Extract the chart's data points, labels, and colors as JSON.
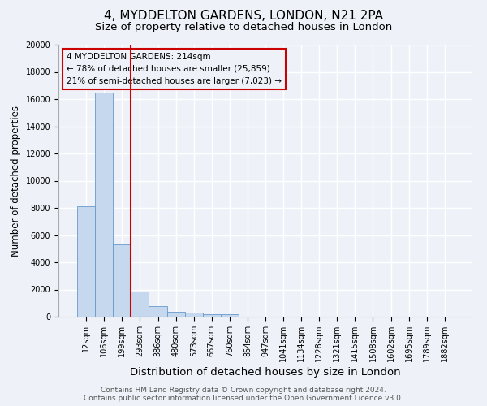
{
  "title": "4, MYDDELTON GARDENS, LONDON, N21 2PA",
  "subtitle": "Size of property relative to detached houses in London",
  "xlabel": "Distribution of detached houses by size in London",
  "ylabel": "Number of detached properties",
  "bar_color": "#c5d8ee",
  "bar_edge_color": "#6699cc",
  "categories": [
    "12sqm",
    "106sqm",
    "199sqm",
    "293sqm",
    "386sqm",
    "480sqm",
    "573sqm",
    "667sqm",
    "760sqm",
    "854sqm",
    "947sqm",
    "1041sqm",
    "1134sqm",
    "1228sqm",
    "1321sqm",
    "1415sqm",
    "1508sqm",
    "1602sqm",
    "1695sqm",
    "1789sqm",
    "1882sqm"
  ],
  "values": [
    8100,
    16500,
    5300,
    1850,
    750,
    330,
    270,
    200,
    170,
    0,
    0,
    0,
    0,
    0,
    0,
    0,
    0,
    0,
    0,
    0,
    0
  ],
  "vline_position": 2.5,
  "vline_color": "#cc0000",
  "annotation_text": "4 MYDDELTON GARDENS: 214sqm\n← 78% of detached houses are smaller (25,859)\n21% of semi-detached houses are larger (7,023) →",
  "annotation_box_color": "#cc0000",
  "ylim": [
    0,
    20000
  ],
  "yticks": [
    0,
    2000,
    4000,
    6000,
    8000,
    10000,
    12000,
    14000,
    16000,
    18000,
    20000
  ],
  "ytick_labels": [
    "0",
    "2000",
    "4000",
    "6000",
    "8000",
    "10000",
    "12000",
    "14000",
    "16000",
    "18000",
    "20000"
  ],
  "footer_line1": "Contains HM Land Registry data © Crown copyright and database right 2024.",
  "footer_line2": "Contains public sector information licensed under the Open Government Licence v3.0.",
  "bg_color": "#eef2f8",
  "grid_color": "#ffffff",
  "title_fontsize": 11,
  "subtitle_fontsize": 9.5,
  "tick_fontsize": 7,
  "ylabel_fontsize": 8.5,
  "xlabel_fontsize": 9.5,
  "footer_fontsize": 6.5,
  "annotation_fontsize": 7.5
}
